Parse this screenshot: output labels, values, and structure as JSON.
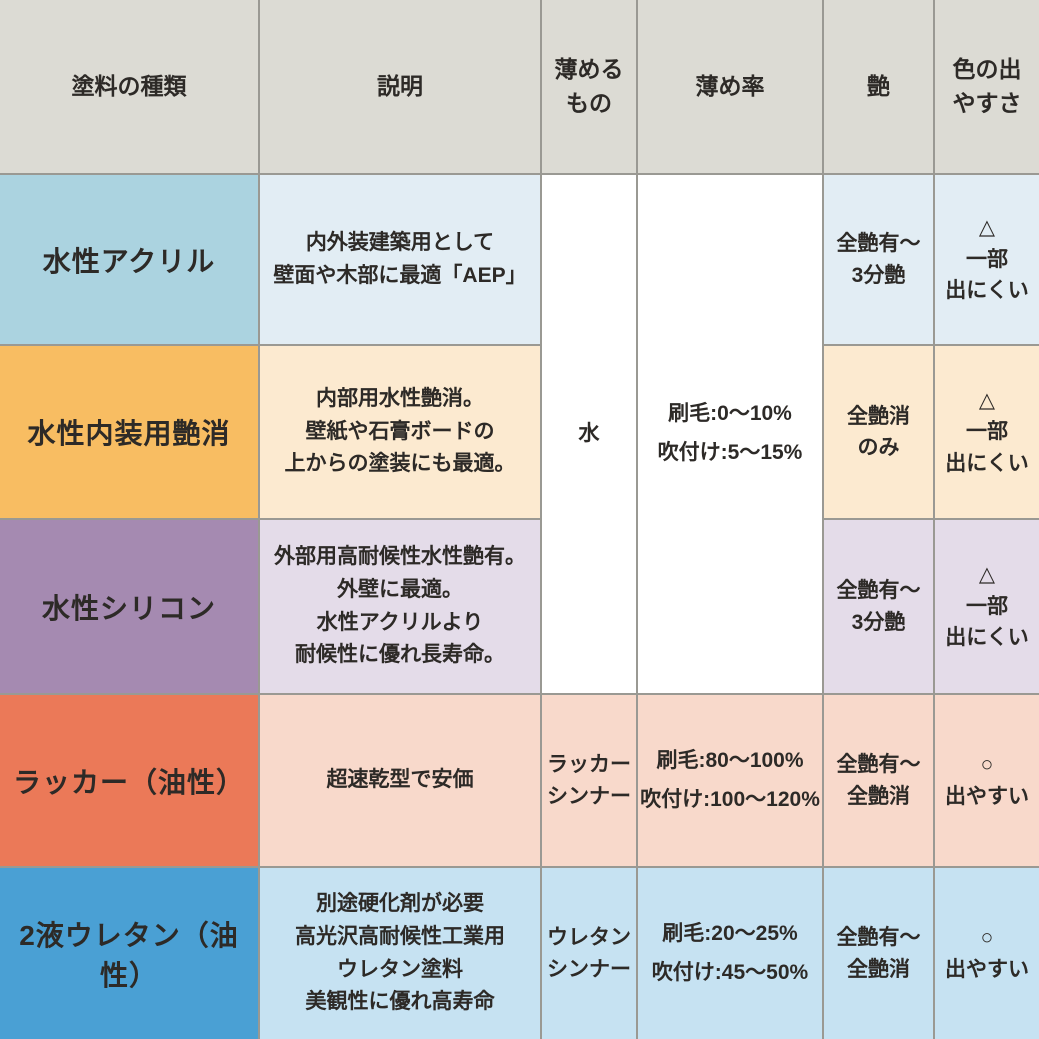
{
  "palette": {
    "border": "#9a9993",
    "header_bg": "#dcdbd4",
    "merged_bg": "#ffffff",
    "text": "#2d2a27"
  },
  "chart_data": {
    "type": "table",
    "columns": [
      "塗料の種類",
      "説明",
      "薄める\nもの",
      "薄め率",
      "艶",
      "色の出\nやすさ"
    ],
    "merged": {
      "note": "薄めるもの and 薄め率 cells are merged vertically across rows 1-3 (water-based paints)",
      "thinner_rows_1_3": "水",
      "ratio_rows_1_3": "刷毛:0〜10%\n吹付け:5〜15%"
    },
    "rows": [
      {
        "name": "水性アクリル",
        "description": "内外装建築用として\n壁面や木部に最適「AEP」",
        "thinner": "水",
        "ratio": "刷毛:0〜10%\n吹付け:5〜15%",
        "gloss": "全艶有〜\n3分艶",
        "color_ease": "△\n一部\n出にくい",
        "name_bg": "#abd3e0",
        "tint_bg": "#e2edf4"
      },
      {
        "name": "水性内装用艶消",
        "description": "内部用水性艶消。\n壁紙や石膏ボードの\n上からの塗装にも最適。",
        "thinner": "水",
        "ratio": "刷毛:0〜10%\n吹付け:5〜15%",
        "gloss": "全艶消\nのみ",
        "color_ease": "△\n一部\n出にくい",
        "name_bg": "#f8bd62",
        "tint_bg": "#fcead0"
      },
      {
        "name": "水性シリコン",
        "description": "外部用高耐候性水性艶有。\n外壁に最適。\n水性アクリルより\n耐候性に優れ長寿命。",
        "thinner": "水",
        "ratio": "刷毛:0〜10%\n吹付け:5〜15%",
        "gloss": "全艶有〜\n3分艶",
        "color_ease": "△\n一部\n出にくい",
        "name_bg": "#a58ab1",
        "tint_bg": "#e4dce9"
      },
      {
        "name": "ラッカー（油性）",
        "description": "超速乾型で安価",
        "thinner": "ラッカー\nシンナー",
        "ratio": "刷毛:80〜100%\n吹付け:100〜120%",
        "gloss": "全艶有〜\n全艶消",
        "color_ease": "○\n出やすい",
        "name_bg": "#eb7958",
        "tint_bg": "#f8d9cb"
      },
      {
        "name": "2液ウレタン（油性）",
        "description": "別途硬化剤が必要\n高光沢高耐候性工業用\nウレタン塗料\n美観性に優れ高寿命",
        "thinner": "ウレタン\nシンナー",
        "ratio": "刷毛:20〜25%\n吹付け:45〜50%",
        "gloss": "全艶有〜\n全艶消",
        "color_ease": "○\n出やすい",
        "name_bg": "#4aa0d4",
        "tint_bg": "#c6e2f2"
      }
    ]
  }
}
